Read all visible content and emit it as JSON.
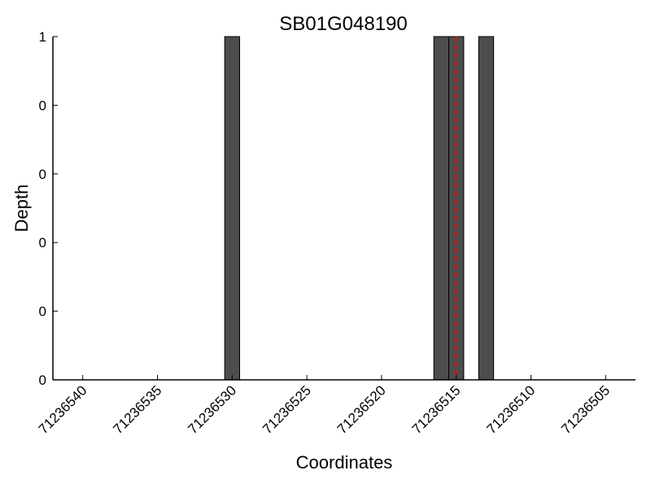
{
  "chart_data": {
    "type": "bar",
    "title": "SB01G048190",
    "xlabel": "Coordinates",
    "ylabel": "Depth",
    "xlim": [
      71236542,
      71236503
    ],
    "ylim": [
      0,
      1
    ],
    "x_reversed": true,
    "x_ticks": [
      "71236540",
      "71236535",
      "71236530",
      "71236525",
      "71236520",
      "71236515",
      "71236510",
      "71236505"
    ],
    "y_ticks": [
      "0",
      "0",
      "0",
      "0",
      "0",
      "1"
    ],
    "bars": [
      {
        "x": 71236530,
        "value": 1
      },
      {
        "x": 71236516,
        "value": 1
      },
      {
        "x": 71236515,
        "value": 1
      },
      {
        "x": 71236513,
        "value": 1
      }
    ],
    "marker_line": {
      "x": 71236515,
      "style": "dashed"
    },
    "bar_color": "#4d4d4d",
    "marker_color": "#ff0000",
    "grid": false
  }
}
